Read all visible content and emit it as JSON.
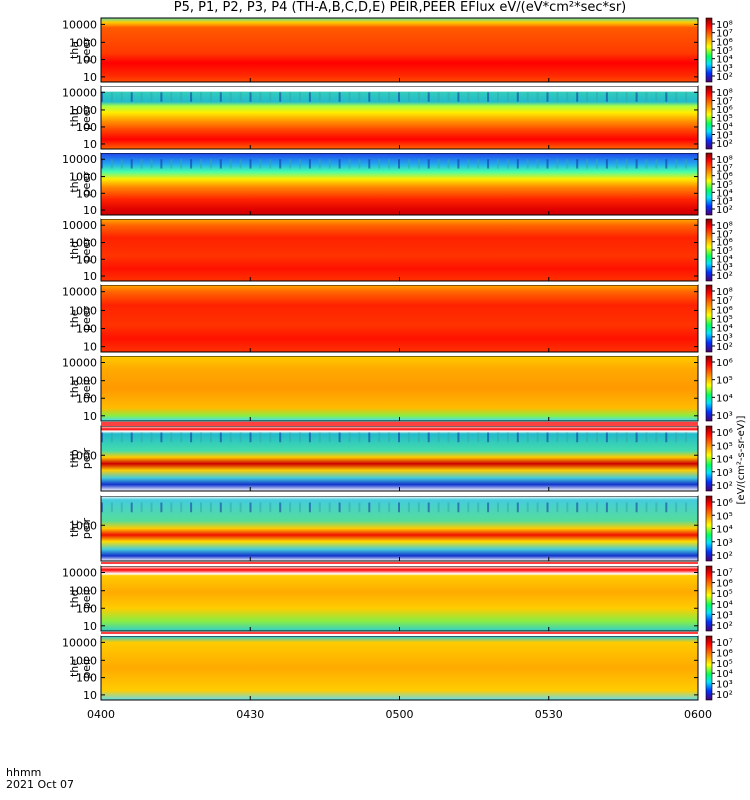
{
  "title": "P5, P1, P2, P3, P4 (TH-A,B,C,D,E) PEIR,PEER EFlux eV/(eV*cm²*sec*sr)",
  "footer": {
    "label_time": "hhmm",
    "label_date": "2021 Oct 07"
  },
  "colorbar_label": "[eV/(cm²-s-sr-eV)]",
  "chart_data": {
    "type": "heatmap",
    "x_ticks": [
      "0400",
      "0430",
      "0500",
      "0530",
      "0600"
    ],
    "x_range": [
      "04:00",
      "06:00"
    ],
    "colormap": "rainbow",
    "panels": [
      {
        "ylabel": "tha peer",
        "y_ticks": [
          "10000",
          "1000",
          "100",
          "10"
        ],
        "cbar_ticks": [
          "10⁸",
          "10⁷",
          "10⁶",
          "10⁵",
          "10⁴",
          "10³",
          "10²"
        ]
      },
      {
        "ylabel": "thb peer",
        "y_ticks": [
          "10000",
          "1000",
          "100",
          "10"
        ],
        "cbar_ticks": [
          "10⁸",
          "10⁷",
          "10⁶",
          "10⁵",
          "10⁴",
          "10³",
          "10²"
        ]
      },
      {
        "ylabel": "thc peer",
        "y_ticks": [
          "10000",
          "1000",
          "100",
          "10"
        ],
        "cbar_ticks": [
          "10⁸",
          "10⁷",
          "10⁶",
          "10⁵",
          "10⁴",
          "10³",
          "10²"
        ]
      },
      {
        "ylabel": "thd peer",
        "y_ticks": [
          "10000",
          "1000",
          "100",
          "10"
        ],
        "cbar_ticks": [
          "10⁸",
          "10⁷",
          "10⁶",
          "10⁵",
          "10⁴",
          "10³",
          "10²"
        ]
      },
      {
        "ylabel": "the peer",
        "y_ticks": [
          "10000",
          "1000",
          "100",
          "10"
        ],
        "cbar_ticks": [
          "10⁸",
          "10⁷",
          "10⁶",
          "10⁵",
          "10⁴",
          "10³",
          "10²"
        ]
      },
      {
        "ylabel": "tha peir",
        "y_ticks": [
          "10000",
          "1000",
          "100",
          "10"
        ],
        "cbar_ticks": [
          "10⁶",
          "10⁵",
          "10⁴",
          "10³"
        ]
      },
      {
        "ylabel": "thb peir",
        "y_ticks": [
          "1000"
        ],
        "cbar_ticks": [
          "10⁶",
          "10⁵",
          "10⁴",
          "10³",
          "10²"
        ]
      },
      {
        "ylabel": "thc peir",
        "y_ticks": [
          "1000"
        ],
        "cbar_ticks": [
          "10⁶",
          "10⁵",
          "10⁴",
          "10³",
          "10²"
        ]
      },
      {
        "ylabel": "thd peir",
        "y_ticks": [
          "10000",
          "1000",
          "100",
          "10"
        ],
        "cbar_ticks": [
          "10⁷",
          "10⁶",
          "10⁵",
          "10⁴",
          "10³",
          "10²"
        ]
      },
      {
        "ylabel": "the peir",
        "y_ticks": [
          "10000",
          "1000",
          "100",
          "10"
        ],
        "cbar_ticks": [
          "10⁷",
          "10⁶",
          "10⁵",
          "10⁴",
          "10³",
          "10²"
        ]
      }
    ]
  }
}
